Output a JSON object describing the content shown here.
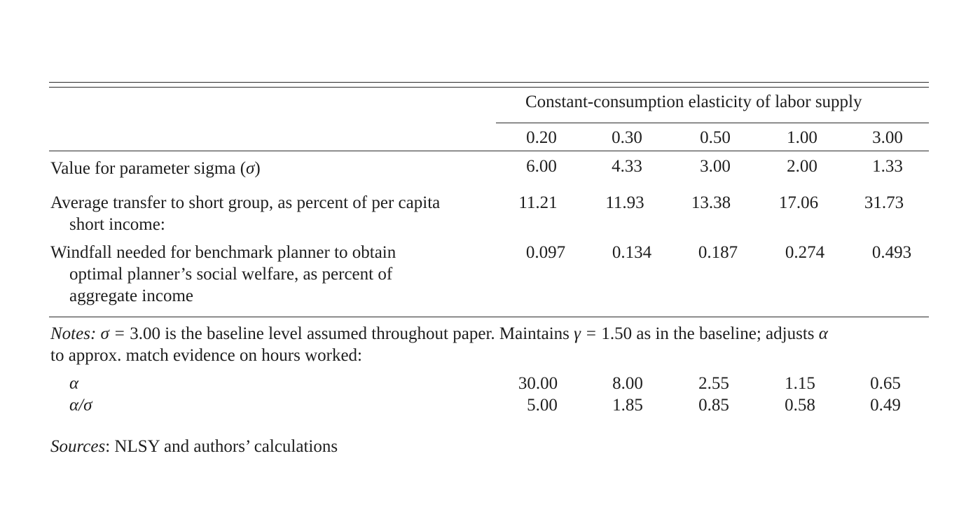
{
  "table": {
    "spanner_header": "Constant-consumption elasticity of labor supply",
    "elasticities": [
      "0.20",
      "0.30",
      "0.50",
      "1.00",
      "3.00"
    ],
    "rows": [
      {
        "label_line1": "Value for parameter sigma (",
        "label_symbol": "σ",
        "label_close": ")",
        "values": [
          "6.00",
          "4.33",
          "3.00",
          "2.00",
          "1.33"
        ]
      },
      {
        "label_line1": "Average transfer to short group, as percent of per capita",
        "label_line2": "short income:",
        "values": [
          "11.21",
          "11.93",
          "13.38",
          "17.06",
          "31.73"
        ]
      },
      {
        "label_line1": "Windfall needed for benchmark planner to obtain",
        "label_line2": "optimal planner’s social welfare, as percent of",
        "label_line3": "aggregate income",
        "values": [
          "0.097",
          "0.134",
          "0.187",
          "0.274",
          "0.493"
        ]
      }
    ]
  },
  "notes": {
    "prefix": "Notes:",
    "sigma_eq": "σ = ",
    "part1": "3.00 is the baseline level assumed throughout paper. Maintains ",
    "gamma_eq": "γ = ",
    "part2": "1.50 as in the baseline; adjusts ",
    "alpha": "α",
    "line2": "to approx. match evidence on hours worked:",
    "alpha_row": {
      "symbol": "α",
      "values": [
        "30.00",
        "8.00",
        "2.55",
        "1.15",
        "0.65"
      ]
    },
    "ratio_row": {
      "symbol": "α/σ",
      "values": [
        "5.00",
        "1.85",
        "0.85",
        "0.58",
        "0.49"
      ]
    }
  },
  "sources": {
    "prefix": "Sources",
    "text": ": NLSY and authors’ calculations"
  }
}
